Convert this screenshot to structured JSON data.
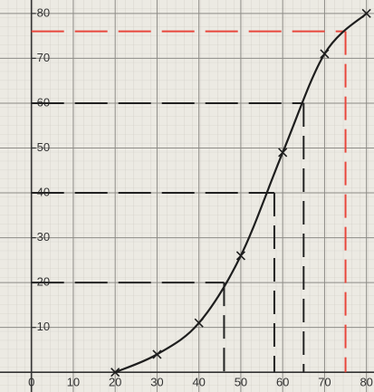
{
  "chart_data": {
    "type": "line",
    "x": [
      20,
      30,
      40,
      50,
      60,
      70,
      80
    ],
    "values": [
      0,
      4,
      11,
      26,
      49,
      71,
      80
    ],
    "color": "#1e1e1e",
    "xlim": [
      -7.5,
      81.8
    ],
    "ylim": [
      -4.4,
      83
    ],
    "xticks": [
      0,
      10,
      20,
      30,
      40,
      50,
      60,
      70,
      80
    ],
    "yticks": [
      10,
      20,
      30,
      40,
      50,
      60,
      70,
      80
    ],
    "grid": true,
    "reference_lines": [
      {
        "y": 20,
        "x": 46,
        "color": "#222222"
      },
      {
        "y": 40,
        "x": 58,
        "color": "#222222"
      },
      {
        "y": 60,
        "x": 65,
        "color": "#222222"
      },
      {
        "y": 76,
        "x": 75,
        "color": "#e8463c"
      }
    ]
  }
}
